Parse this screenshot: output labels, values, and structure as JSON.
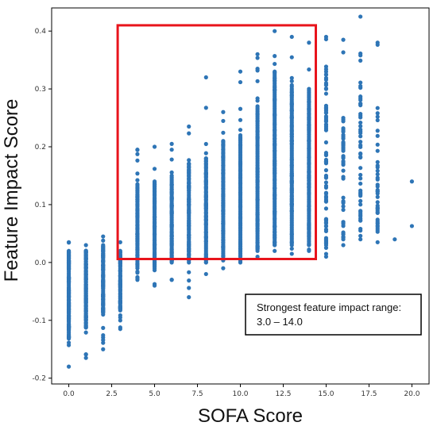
{
  "chart_data": {
    "type": "scatter",
    "xlabel": "SOFA Score",
    "ylabel": "Feature Impact Score",
    "xlim": [
      -1,
      21
    ],
    "ylim": [
      -0.21,
      0.44
    ],
    "xticks": [
      "0.0",
      "2.5",
      "5.0",
      "7.5",
      "10.0",
      "12.5",
      "15.0",
      "17.5",
      "20.0"
    ],
    "yticks": [
      "-0.2",
      "-0.1",
      "0.0",
      "0.1",
      "0.2",
      "0.3",
      "0.4"
    ],
    "xtick_values": [
      0,
      2.5,
      5,
      7.5,
      10,
      12.5,
      15,
      17.5,
      20
    ],
    "ytick_values": [
      -0.2,
      -0.1,
      0,
      0.1,
      0.2,
      0.3,
      0.4
    ],
    "grid": false,
    "marker_color": "#2e75b6",
    "columns": [
      {
        "x": 0,
        "ymin": -0.18,
        "ymax": 0.035,
        "dense": [
          -0.13,
          0.02
        ],
        "count": 90
      },
      {
        "x": 1,
        "ymin": -0.165,
        "ymax": 0.03,
        "dense": [
          -0.11,
          0.02
        ],
        "count": 75
      },
      {
        "x": 2,
        "ymin": -0.15,
        "ymax": 0.045,
        "dense": [
          -0.09,
          0.03
        ],
        "count": 60
      },
      {
        "x": 3,
        "ymin": -0.115,
        "ymax": 0.035,
        "dense": [
          -0.08,
          0.02
        ],
        "count": 50
      },
      {
        "x": 4,
        "ymin": -0.03,
        "ymax": 0.195,
        "dense": [
          -0.01,
          0.13
        ],
        "count": 55
      },
      {
        "x": 5,
        "ymin": -0.04,
        "ymax": 0.2,
        "dense": [
          -0.01,
          0.14
        ],
        "count": 50
      },
      {
        "x": 6,
        "ymin": -0.03,
        "ymax": 0.205,
        "dense": [
          0.0,
          0.15
        ],
        "count": 48
      },
      {
        "x": 7,
        "ymin": -0.06,
        "ymax": 0.235,
        "dense": [
          0.0,
          0.17
        ],
        "count": 46
      },
      {
        "x": 8,
        "ymin": -0.02,
        "ymax": 0.32,
        "dense": [
          0.0,
          0.18
        ],
        "count": 46
      },
      {
        "x": 9,
        "ymin": -0.01,
        "ymax": 0.26,
        "dense": [
          0.01,
          0.21
        ],
        "count": 44
      },
      {
        "x": 10,
        "ymin": 0.0,
        "ymax": 0.33,
        "dense": [
          0.01,
          0.22
        ],
        "count": 44
      },
      {
        "x": 11,
        "ymin": 0.01,
        "ymax": 0.36,
        "dense": [
          0.02,
          0.27
        ],
        "count": 42
      },
      {
        "x": 12,
        "ymin": 0.02,
        "ymax": 0.4,
        "dense": [
          0.03,
          0.33
        ],
        "count": 46
      },
      {
        "x": 13,
        "ymin": 0.015,
        "ymax": 0.39,
        "dense": [
          0.03,
          0.3
        ],
        "count": 42
      },
      {
        "x": 14,
        "ymin": 0.02,
        "ymax": 0.38,
        "dense": [
          0.03,
          0.3
        ],
        "count": 38
      },
      {
        "x": 15,
        "ymin": 0.01,
        "ymax": 0.39,
        "dense": [
          0.03,
          0.34
        ],
        "count": 30
      },
      {
        "x": 16,
        "ymin": 0.03,
        "ymax": 0.385,
        "dense": [
          0.04,
          0.25
        ],
        "count": 14
      },
      {
        "x": 17,
        "ymin": 0.04,
        "ymax": 0.425,
        "dense": [
          0.04,
          0.32
        ],
        "count": 14
      },
      {
        "x": 18,
        "ymin": 0.035,
        "ymax": 0.38,
        "dense": [
          0.05,
          0.27
        ],
        "count": 8
      }
    ],
    "extra_points": [
      {
        "x": 19,
        "y": 0.04
      },
      {
        "x": 20,
        "y": 0.14
      },
      {
        "x": 20,
        "y": 0.063
      }
    ],
    "highlight_box": {
      "x0": 3.0,
      "x1": 14.0,
      "y0": 0.006,
      "y1": 0.41,
      "color": "#e8141c"
    },
    "annotation": {
      "line1": "Strongest feature impact range:",
      "line2": "3.0 – 14.0",
      "x_left": 10.3,
      "y_top": -0.055
    }
  }
}
